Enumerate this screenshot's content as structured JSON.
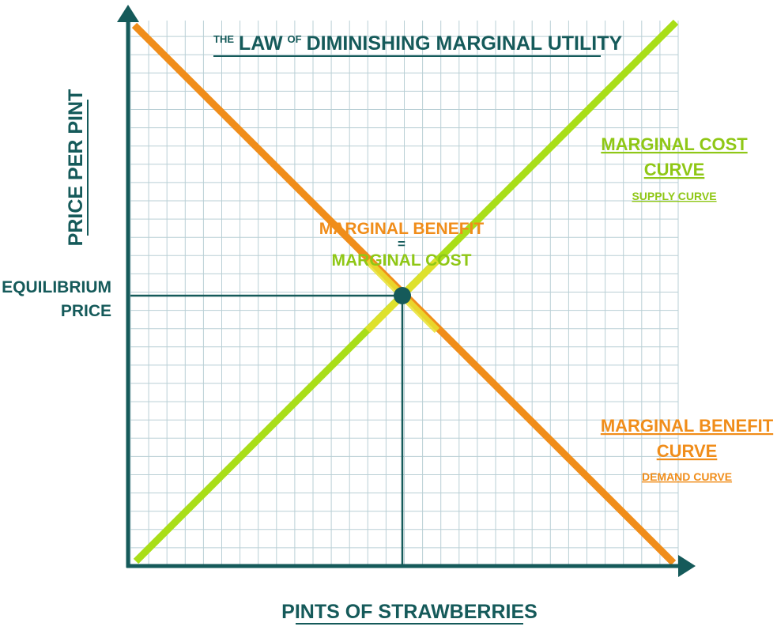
{
  "title": {
    "prefix": "THE",
    "main_1": "LAW",
    "small_of": "OF",
    "main_2": "DIMINISHING MARGINAL UTILITY"
  },
  "axes": {
    "y_label": "PRICE PER PINT",
    "x_label": "PINTS OF STRAWBERRIES"
  },
  "equilibrium": {
    "price_line_1": "EQUILIBRIUM",
    "price_line_2": "PRICE",
    "center_line_1": "MARGINAL BENEFIT",
    "center_eq": "=",
    "center_line_2": "MARGINAL COST"
  },
  "cost_curve": {
    "line_1": "MARGINAL COST",
    "line_2": "CURVE",
    "sub": "SUPPLY CURVE"
  },
  "benefit_curve": {
    "line_1": "MARGINAL BENEFIT",
    "line_2": "CURVE",
    "sub": "DEMAND CURVE"
  },
  "colors": {
    "axis": "#155a5a",
    "grid": "#b9cfd5",
    "benefit": "#f08d1a",
    "cost": "#a9de18",
    "overlap": "#e8e230",
    "label_benefit": "#f08d1a",
    "label_cost": "#8fc716",
    "label_teal": "#155a5a"
  }
}
